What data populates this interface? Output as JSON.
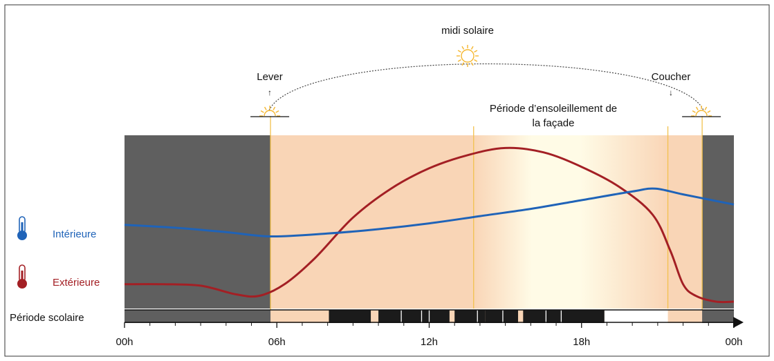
{
  "labels": {
    "midi": "midi solaire",
    "lever": "Lever",
    "coucher": "Coucher",
    "periode_line1": "Période d’ensoleillement de",
    "periode_line2": "la façade",
    "interieure": "Intérieure",
    "exterieure": "Extérieure",
    "scolaire": "Période scolaire"
  },
  "icons": {
    "thermometer_interior": "thermometer-icon",
    "thermometer_exterior": "thermometer-icon",
    "sun": "sun-icon"
  },
  "colors": {
    "night": "#5f5f5f",
    "day": "#f9d5b6",
    "sun_band_edge": "#f9d5b6",
    "sun_band_center": "#fffbe6",
    "guide_line": "#f2c14e",
    "interior": "#1f63b8",
    "exterior": "#a31f24",
    "sun": "#f5b730"
  },
  "chart_data": {
    "type": "line",
    "x_unit": "hours",
    "xlim": [
      0,
      24
    ],
    "ticks": [
      "00h",
      "06h",
      "12h",
      "18h",
      "00h"
    ],
    "tick_hours": [
      0,
      6,
      12,
      18,
      24
    ],
    "sunrise_h": 5.75,
    "sunset_h": 22.75,
    "facade_sun_start_h": 13.75,
    "facade_sun_end_h": 21.4,
    "series": [
      {
        "name": "Intérieure",
        "x": [
          0,
          2,
          4,
          5.75,
          8,
          10,
          12,
          14,
          16,
          18,
          20,
          20.9,
          22,
          24
        ],
        "y": [
          0.53,
          0.51,
          0.48,
          0.45,
          0.47,
          0.5,
          0.54,
          0.59,
          0.64,
          0.7,
          0.76,
          0.78,
          0.74,
          0.67
        ]
      },
      {
        "name": "Extérieure",
        "x": [
          0,
          1.5,
          3,
          4.4,
          5.3,
          6.3,
          7.5,
          9,
          10.5,
          12,
          13.5,
          15,
          16.5,
          18,
          19.5,
          20.8,
          21.5,
          22,
          22.5,
          23.3,
          24
        ],
        "y": [
          0.12,
          0.12,
          0.11,
          0.05,
          0.04,
          0.12,
          0.3,
          0.58,
          0.78,
          0.92,
          1.01,
          1.06,
          1.03,
          0.93,
          0.79,
          0.6,
          0.35,
          0.12,
          0.04,
          0.0,
          0.0
        ]
      }
    ],
    "school_period": {
      "segments_h": [
        [
          8.05,
          9.7
        ],
        [
          10.0,
          12.8
        ],
        [
          13.0,
          14.2
        ],
        [
          14.2,
          15.5
        ],
        [
          15.7,
          18.9
        ]
      ],
      "separators_h": [
        10.9,
        11.7,
        12.0,
        13.9,
        14.9,
        16.6,
        17.2
      ]
    }
  }
}
